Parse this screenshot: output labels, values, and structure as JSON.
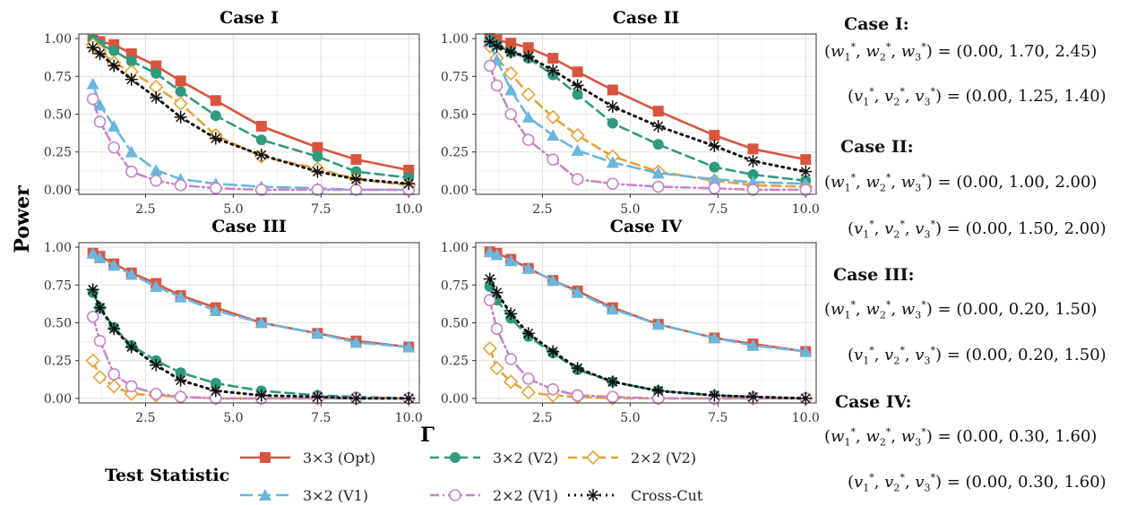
{
  "chart_data": [
    {
      "type": "line",
      "title": "Case I",
      "xlabel": "",
      "ylabel": "",
      "xlim": [
        0.6,
        10.3
      ],
      "ylim": [
        -0.03,
        1.03
      ],
      "grid": true,
      "series": [
        {
          "name": "3×3 (Opt)",
          "x": [
            1.0,
            1.2,
            1.6,
            2.1,
            2.8,
            3.5,
            4.5,
            5.8,
            7.4,
            8.5,
            10.0
          ],
          "y": [
            0.99,
            0.98,
            0.96,
            0.9,
            0.82,
            0.72,
            0.59,
            0.42,
            0.28,
            0.2,
            0.13
          ]
        },
        {
          "name": "3×2 (V2)",
          "x": [
            1.0,
            1.2,
            1.6,
            2.1,
            2.8,
            3.5,
            4.5,
            5.8,
            7.4,
            8.5,
            10.0
          ],
          "y": [
            0.99,
            0.96,
            0.92,
            0.85,
            0.77,
            0.65,
            0.49,
            0.33,
            0.22,
            0.12,
            0.08
          ]
        },
        {
          "name": "2×2 (V2)",
          "x": [
            1.0,
            1.2,
            1.6,
            2.1,
            2.8,
            3.5,
            4.5,
            5.8,
            7.4,
            8.5,
            10.0
          ],
          "y": [
            0.96,
            0.92,
            0.84,
            0.78,
            0.68,
            0.57,
            0.36,
            0.22,
            0.14,
            0.07,
            0.03
          ]
        },
        {
          "name": "3×2 (V1)",
          "x": [
            1.0,
            1.2,
            1.6,
            2.1,
            2.8,
            3.5,
            4.5,
            5.8,
            7.4,
            8.5,
            10.0
          ],
          "y": [
            0.7,
            0.56,
            0.42,
            0.25,
            0.13,
            0.07,
            0.04,
            0.02,
            0.01,
            0.0,
            0.0
          ]
        },
        {
          "name": "2×2 (V1)",
          "x": [
            1.0,
            1.2,
            1.6,
            2.1,
            2.8,
            3.5,
            4.5,
            5.8,
            7.4,
            8.5,
            10.0
          ],
          "y": [
            0.6,
            0.45,
            0.28,
            0.12,
            0.06,
            0.03,
            0.01,
            0.0,
            0.0,
            0.0,
            0.0
          ]
        },
        {
          "name": "Cross-Cut",
          "x": [
            1.0,
            1.2,
            1.6,
            2.1,
            2.8,
            3.5,
            4.5,
            5.8,
            7.4,
            8.5,
            10.0
          ],
          "y": [
            0.94,
            0.9,
            0.82,
            0.73,
            0.61,
            0.48,
            0.34,
            0.23,
            0.12,
            0.07,
            0.04
          ]
        }
      ]
    },
    {
      "type": "line",
      "title": "Case II",
      "xlabel": "",
      "ylabel": "",
      "xlim": [
        0.6,
        10.3
      ],
      "ylim": [
        -0.03,
        1.03
      ],
      "grid": true,
      "series": [
        {
          "name": "3×3 (Opt)",
          "x": [
            1.0,
            1.2,
            1.6,
            2.1,
            2.8,
            3.5,
            4.5,
            5.8,
            7.4,
            8.5,
            10.0
          ],
          "y": [
            1.0,
            0.99,
            0.97,
            0.94,
            0.87,
            0.78,
            0.66,
            0.52,
            0.36,
            0.27,
            0.2
          ]
        },
        {
          "name": "3×2 (V2)",
          "x": [
            1.0,
            1.2,
            1.6,
            2.1,
            2.8,
            3.5,
            4.5,
            5.8,
            7.4,
            8.5,
            10.0
          ],
          "y": [
            0.99,
            0.96,
            0.91,
            0.87,
            0.76,
            0.63,
            0.44,
            0.3,
            0.15,
            0.1,
            0.06
          ]
        },
        {
          "name": "2×2 (V2)",
          "x": [
            1.0,
            1.2,
            1.6,
            2.1,
            2.8,
            3.5,
            4.5,
            5.8,
            7.4,
            8.5,
            10.0
          ],
          "y": [
            0.95,
            0.87,
            0.77,
            0.63,
            0.48,
            0.36,
            0.22,
            0.12,
            0.06,
            0.03,
            0.02
          ]
        },
        {
          "name": "3×2 (V1)",
          "x": [
            1.0,
            1.2,
            1.6,
            2.1,
            2.8,
            3.5,
            4.5,
            5.8,
            7.4,
            8.5,
            10.0
          ],
          "y": [
            0.98,
            0.86,
            0.66,
            0.48,
            0.36,
            0.26,
            0.18,
            0.11,
            0.07,
            0.05,
            0.04
          ]
        },
        {
          "name": "2×2 (V1)",
          "x": [
            1.0,
            1.2,
            1.6,
            2.1,
            2.8,
            3.5,
            4.5,
            5.8,
            7.4,
            8.5,
            10.0
          ],
          "y": [
            0.82,
            0.69,
            0.5,
            0.33,
            0.2,
            0.07,
            0.04,
            0.02,
            0.01,
            0.0,
            0.0
          ]
        },
        {
          "name": "Cross-Cut",
          "x": [
            1.0,
            1.2,
            1.6,
            2.1,
            2.8,
            3.5,
            4.5,
            5.8,
            7.4,
            8.5,
            10.0
          ],
          "y": [
            0.98,
            0.95,
            0.91,
            0.88,
            0.79,
            0.69,
            0.55,
            0.42,
            0.29,
            0.19,
            0.12
          ]
        }
      ]
    },
    {
      "type": "line",
      "title": "Case III",
      "xlabel": "",
      "ylabel": "",
      "xlim": [
        0.6,
        10.3
      ],
      "ylim": [
        -0.03,
        1.03
      ],
      "grid": true,
      "series": [
        {
          "name": "3×3 (Opt)",
          "x": [
            1.0,
            1.2,
            1.6,
            2.1,
            2.8,
            3.5,
            4.5,
            5.8,
            7.4,
            8.5,
            10.0
          ],
          "y": [
            0.96,
            0.94,
            0.89,
            0.83,
            0.76,
            0.68,
            0.6,
            0.5,
            0.43,
            0.38,
            0.34
          ]
        },
        {
          "name": "3×2 (V2)",
          "x": [
            1.0,
            1.2,
            1.6,
            2.1,
            2.8,
            3.5,
            4.5,
            5.8,
            7.4,
            8.5,
            10.0
          ],
          "y": [
            0.7,
            0.6,
            0.47,
            0.35,
            0.25,
            0.17,
            0.1,
            0.05,
            0.02,
            0.01,
            0.0
          ]
        },
        {
          "name": "2×2 (V2)",
          "x": [
            1.0,
            1.2,
            1.6,
            2.1,
            2.8,
            3.5,
            4.5,
            5.8,
            7.4,
            8.5,
            10.0
          ],
          "y": [
            0.25,
            0.14,
            0.08,
            0.03,
            0.02,
            0.01,
            0.0,
            0.0,
            0.0,
            0.0,
            0.0
          ]
        },
        {
          "name": "3×2 (V1)",
          "x": [
            1.0,
            1.2,
            1.6,
            2.1,
            2.8,
            3.5,
            4.5,
            5.8,
            7.4,
            8.5,
            10.0
          ],
          "y": [
            0.96,
            0.93,
            0.88,
            0.82,
            0.74,
            0.67,
            0.58,
            0.5,
            0.43,
            0.37,
            0.34
          ]
        },
        {
          "name": "2×2 (V1)",
          "x": [
            1.0,
            1.2,
            1.6,
            2.1,
            2.8,
            3.5,
            4.5,
            5.8,
            7.4,
            8.5,
            10.0
          ],
          "y": [
            0.54,
            0.38,
            0.16,
            0.08,
            0.03,
            0.01,
            0.0,
            0.0,
            0.0,
            0.0,
            0.0
          ]
        },
        {
          "name": "Cross-Cut",
          "x": [
            1.0,
            1.2,
            1.6,
            2.1,
            2.8,
            3.5,
            4.5,
            5.8,
            7.4,
            8.5,
            10.0
          ],
          "y": [
            0.72,
            0.6,
            0.46,
            0.34,
            0.22,
            0.12,
            0.05,
            0.02,
            0.01,
            0.0,
            0.0
          ]
        }
      ]
    },
    {
      "type": "line",
      "title": "Case IV",
      "xlabel": "",
      "ylabel": "",
      "xlim": [
        0.6,
        10.3
      ],
      "ylim": [
        -0.03,
        1.03
      ],
      "grid": true,
      "series": [
        {
          "name": "3×3 (Opt)",
          "x": [
            1.0,
            1.2,
            1.6,
            2.1,
            2.8,
            3.5,
            4.5,
            5.8,
            7.4,
            8.5,
            10.0
          ],
          "y": [
            0.97,
            0.96,
            0.92,
            0.86,
            0.78,
            0.71,
            0.6,
            0.49,
            0.4,
            0.36,
            0.31
          ]
        },
        {
          "name": "3×2 (V2)",
          "x": [
            1.0,
            1.2,
            1.6,
            2.1,
            2.8,
            3.5,
            4.5,
            5.8,
            7.4,
            8.5,
            10.0
          ],
          "y": [
            0.74,
            0.65,
            0.53,
            0.41,
            0.3,
            0.19,
            0.11,
            0.05,
            0.02,
            0.01,
            0.0
          ]
        },
        {
          "name": "2×2 (V2)",
          "x": [
            1.0,
            1.2,
            1.6,
            2.1,
            2.8,
            3.5,
            4.5,
            5.8,
            7.4,
            8.5,
            10.0
          ],
          "y": [
            0.33,
            0.2,
            0.11,
            0.04,
            0.02,
            0.01,
            0.0,
            0.0,
            0.0,
            0.0,
            0.0
          ]
        },
        {
          "name": "3×2 (V1)",
          "x": [
            1.0,
            1.2,
            1.6,
            2.1,
            2.8,
            3.5,
            4.5,
            5.8,
            7.4,
            8.5,
            10.0
          ],
          "y": [
            0.97,
            0.95,
            0.91,
            0.86,
            0.78,
            0.7,
            0.59,
            0.49,
            0.4,
            0.35,
            0.31
          ]
        },
        {
          "name": "2×2 (V1)",
          "x": [
            1.0,
            1.2,
            1.6,
            2.1,
            2.8,
            3.5,
            4.5,
            5.8,
            7.4,
            8.5,
            10.0
          ],
          "y": [
            0.65,
            0.46,
            0.26,
            0.13,
            0.06,
            0.02,
            0.01,
            0.0,
            0.0,
            0.0,
            0.0
          ]
        },
        {
          "name": "Cross-Cut",
          "x": [
            1.0,
            1.2,
            1.6,
            2.1,
            2.8,
            3.5,
            4.5,
            5.8,
            7.4,
            8.5,
            10.0
          ],
          "y": [
            0.79,
            0.7,
            0.56,
            0.43,
            0.31,
            0.2,
            0.11,
            0.05,
            0.02,
            0.01,
            0.0
          ]
        }
      ]
    }
  ],
  "shared_axes": {
    "y_label": "Power",
    "x_label": "Γ",
    "y_ticks": [
      "0.00",
      "0.25",
      "0.50",
      "0.75",
      "1.00"
    ],
    "y_tick_values": [
      0,
      0.25,
      0.5,
      0.75,
      1.0
    ],
    "x_ticks": [
      "2.5",
      "5.0",
      "7.5",
      "10.0"
    ],
    "x_tick_values": [
      2.5,
      5.0,
      7.5,
      10.0
    ]
  },
  "series_style": [
    {
      "name": "3×3 (Opt)",
      "color": "#d9543f",
      "dash": "solid",
      "marker": "square"
    },
    {
      "name": "3×2 (V1)",
      "color": "#6bb6dc",
      "dash": "longdash",
      "marker": "triangle"
    },
    {
      "name": "3×2 (V2)",
      "color": "#2f9a7d",
      "dash": "dash",
      "marker": "circle"
    },
    {
      "name": "2×2 (V1)",
      "color": "#c486c6",
      "dash": "dashdot",
      "marker": "open-circle"
    },
    {
      "name": "2×2 (V2)",
      "color": "#e3a33a",
      "dash": "dash",
      "marker": "open-diamond"
    },
    {
      "name": "Cross-Cut",
      "color": "#111111",
      "dash": "dotted",
      "marker": "asterisk"
    }
  ],
  "legend": {
    "title": "Test Statistic",
    "placement": "bottom",
    "items": [
      [
        "3×3 (Opt)",
        "3×2 (V2)",
        "2×2 (V2)"
      ],
      [
        "3×2 (V1)",
        "2×2 (V1)",
        "Cross-Cut"
      ]
    ]
  },
  "cases": [
    {
      "title": "Case I:",
      "w": "(0.00, 1.70, 2.45)",
      "v": "(0.00, 1.25, 1.40)"
    },
    {
      "title": "Case II:",
      "w": "(0.00, 1.00, 2.00)",
      "v": "(0.00, 1.50, 2.00)"
    },
    {
      "title": "Case III:",
      "w": "(0.00, 0.20, 1.50)",
      "v": "(0.00, 0.20, 1.50)"
    },
    {
      "title": "Case IV:",
      "w": "(0.00, 0.30, 1.60)",
      "v": "(0.00, 0.30, 1.60)"
    }
  ]
}
